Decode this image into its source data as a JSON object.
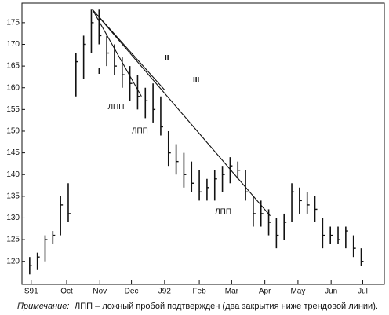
{
  "chart_data": {
    "type": "ohlc",
    "x": [
      1,
      2,
      3,
      4,
      5,
      6,
      7,
      8,
      9,
      10,
      11,
      12,
      13,
      14,
      15,
      16,
      17,
      18,
      19,
      20,
      21,
      22,
      23,
      24,
      25,
      26,
      27,
      28,
      29,
      30,
      31,
      32,
      33,
      34,
      35,
      36,
      37,
      38,
      39,
      40,
      41,
      42,
      43,
      44
    ],
    "high": [
      121,
      122,
      126,
      127,
      135,
      138,
      168,
      172,
      178,
      178,
      172,
      170,
      167,
      165,
      163,
      160,
      161,
      158,
      150,
      147,
      145,
      143,
      141,
      139,
      141,
      142,
      144,
      143,
      141,
      135,
      134,
      132,
      130,
      131,
      138,
      137,
      136,
      135,
      130,
      128,
      128,
      128,
      126,
      123
    ],
    "low": [
      117,
      118,
      120,
      124,
      126,
      129,
      158,
      162,
      168,
      170,
      165,
      163,
      160,
      157,
      155,
      153,
      152,
      149,
      142,
      140,
      137,
      136,
      134,
      134,
      134,
      136,
      138,
      139,
      134,
      128,
      128,
      126,
      123,
      125,
      129,
      131,
      131,
      129,
      123,
      124,
      124,
      123,
      121,
      119
    ],
    "close": [
      119,
      121,
      125,
      126,
      133,
      131,
      166,
      170,
      175,
      172,
      168,
      165,
      163,
      161,
      158,
      157,
      155,
      151,
      145,
      143,
      140,
      138,
      136,
      137,
      139,
      140,
      142,
      141,
      136,
      131,
      131,
      129,
      126,
      129,
      136,
      134,
      133,
      132,
      126,
      126,
      125,
      127,
      123,
      120
    ],
    "color": "#111111",
    "xlim": [
      0,
      47
    ],
    "xticks": [
      {
        "value": 1.2,
        "label": "S91"
      },
      {
        "value": 5.8,
        "label": "Oct"
      },
      {
        "value": 10.1,
        "label": "Nov"
      },
      {
        "value": 14.2,
        "label": "Dec"
      },
      {
        "value": 18.5,
        "label": "J92"
      },
      {
        "value": 23,
        "label": "Feb"
      },
      {
        "value": 27.2,
        "label": "Mar"
      },
      {
        "value": 31.5,
        "label": "Apr"
      },
      {
        "value": 35.8,
        "label": "May"
      },
      {
        "value": 40.1,
        "label": "Jun"
      },
      {
        "value": 44.2,
        "label": "Jul"
      }
    ],
    "ylim": [
      114.7,
      179.5
    ],
    "yticks": [
      120,
      125,
      130,
      135,
      140,
      145,
      150,
      155,
      160,
      165,
      170,
      175
    ],
    "trendlines": [
      {
        "label": "I",
        "from": [
          9.15,
          178
        ],
        "to": [
          15.5,
          158
        ],
        "label_at": [
          10,
          163.7
        ]
      },
      {
        "label": "II",
        "from": [
          9.15,
          178
        ],
        "to": [
          18.5,
          159.5
        ],
        "label_at": [
          18.8,
          166.8
        ]
      },
      {
        "label": "III",
        "from": [
          9.15,
          178
        ],
        "to": [
          32.2,
          130.5
        ],
        "label_at": [
          22.6,
          161.7
        ]
      }
    ],
    "annotations": [
      {
        "text": "ЛПП",
        "at": [
          12.2,
          155.5
        ]
      },
      {
        "text": "ЛПП",
        "at": [
          15.3,
          150
        ]
      },
      {
        "text": "ЛПП",
        "at": [
          26.1,
          131.4
        ]
      }
    ],
    "note_label": "Примечание:",
    "note": "ЛПП – ложный пробой подтвержден (два закрытия ниже трендовой линии)."
  }
}
